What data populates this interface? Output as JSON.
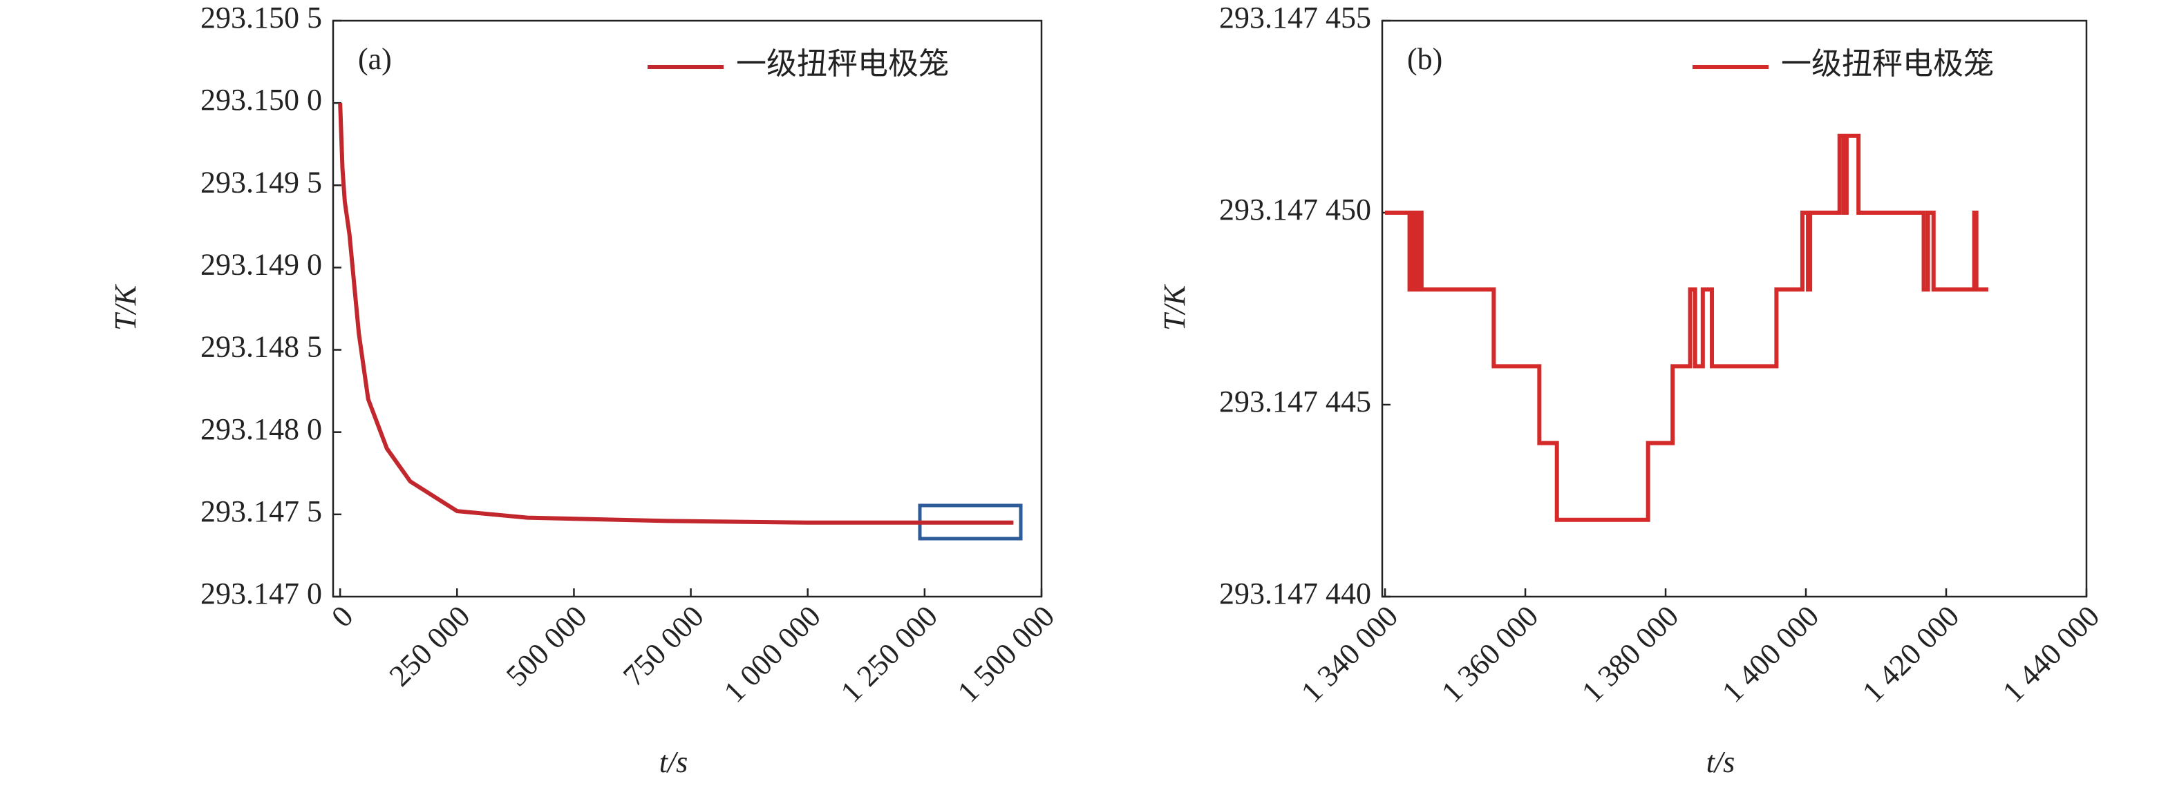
{
  "chart_data": [
    {
      "type": "line",
      "panel_label": "(a)",
      "xlabel": "t/s",
      "ylabel": "T/K",
      "legend": "upper right",
      "x": [
        0,
        5000,
        10000,
        20000,
        40000,
        60000,
        100000,
        150000,
        250000,
        400000,
        700000,
        1000000,
        1440000
      ],
      "series": [
        {
          "name": "一级扭秤电极笼",
          "color": "#c1272d",
          "values": [
            293.15,
            293.1496,
            293.1494,
            293.1492,
            293.1486,
            293.1482,
            293.1479,
            293.1477,
            293.14752,
            293.14748,
            293.14746,
            293.14745,
            293.14745
          ]
        }
      ],
      "xlim": [
        -15000,
        1500000
      ],
      "xticks": [
        0,
        {
          "value": 250000,
          "label": "250 000"
        },
        {
          "value": 500000,
          "label": "500 000"
        },
        {
          "value": 750000,
          "label": "750 000"
        },
        {
          "value": 1000000,
          "label": "1 000 000"
        },
        {
          "value": 1250000,
          "label": "1 250 000"
        },
        {
          "value": 1500000,
          "label": "1 500 000"
        }
      ],
      "ylim": [
        293.147,
        293.1505
      ],
      "yticks": [
        {
          "value": 293.147,
          "label": "293.147 0"
        },
        {
          "value": 293.1475,
          "label": "293.147 5"
        },
        {
          "value": 293.148,
          "label": "293.148 0"
        },
        {
          "value": 293.1485,
          "label": "293.148 5"
        },
        {
          "value": 293.149,
          "label": "293.149 0"
        },
        {
          "value": 293.1495,
          "label": "293.149 5"
        },
        {
          "value": 293.15,
          "label": "293.150 0"
        },
        {
          "value": 293.1505,
          "label": "293.150 5"
        }
      ]
    },
    {
      "type": "line",
      "panel_label": "(b)",
      "xlabel": "t/s",
      "ylabel": "T/K",
      "legend": "upper right",
      "x": [
        1340000,
        1343500,
        1343500,
        1343900,
        1343900,
        1344300,
        1344300,
        1344800,
        1344800,
        1345200,
        1345200,
        1355500,
        1355500,
        1362000,
        1362000,
        1364500,
        1364500,
        1377500,
        1377500,
        1381000,
        1381000,
        1383500,
        1383500,
        1384200,
        1384200,
        1385300,
        1385300,
        1386600,
        1386600,
        1395800,
        1395800,
        1399500,
        1399500,
        1400300,
        1400300,
        1400600,
        1400600,
        1404800,
        1404800,
        1405400,
        1405400,
        1405800,
        1405800,
        1407500,
        1407500,
        1416800,
        1416800,
        1417400,
        1417400,
        1418200,
        1418200,
        1424000,
        1424000,
        1424300,
        1424300,
        1426000
      ],
      "series": [
        {
          "name": "一级扭秤电极笼",
          "color": "#d42a2a",
          "values": [
            293.14745,
            293.14745,
            293.147448,
            293.147448,
            293.14745,
            293.14745,
            293.147448,
            293.147448,
            293.14745,
            293.14745,
            293.147448,
            293.147448,
            293.147446,
            293.147446,
            293.147444,
            293.147444,
            293.147442,
            293.147442,
            293.147444,
            293.147444,
            293.147446,
            293.147446,
            293.147448,
            293.147448,
            293.147446,
            293.147446,
            293.147448,
            293.147448,
            293.147446,
            293.147446,
            293.147448,
            293.147448,
            293.14745,
            293.14745,
            293.147448,
            293.147448,
            293.14745,
            293.14745,
            293.147452,
            293.147452,
            293.14745,
            293.14745,
            293.147452,
            293.147452,
            293.14745,
            293.14745,
            293.147448,
            293.147448,
            293.14745,
            293.14745,
            293.147448,
            293.147448,
            293.14745,
            293.14745,
            293.147448,
            293.147448
          ]
        }
      ],
      "xlim": [
        1339600,
        1440000
      ],
      "xticks": [
        {
          "value": 1340000,
          "label": "1 340 000"
        },
        {
          "value": 1360000,
          "label": "1 360 000"
        },
        {
          "value": 1380000,
          "label": "1 380 000"
        },
        {
          "value": 1400000,
          "label": "1 400 000"
        },
        {
          "value": 1420000,
          "label": "1 420 000"
        },
        {
          "value": 1440000,
          "label": "1 440 000"
        }
      ],
      "ylim": [
        293.14744,
        293.147455
      ],
      "yticks": [
        {
          "value": 293.14744,
          "label": "293.147 440"
        },
        {
          "value": 293.147445,
          "label": "293.147 445"
        },
        {
          "value": 293.14745,
          "label": "293.147 450"
        },
        {
          "value": 293.147455,
          "label": "293.147 455"
        }
      ]
    }
  ]
}
